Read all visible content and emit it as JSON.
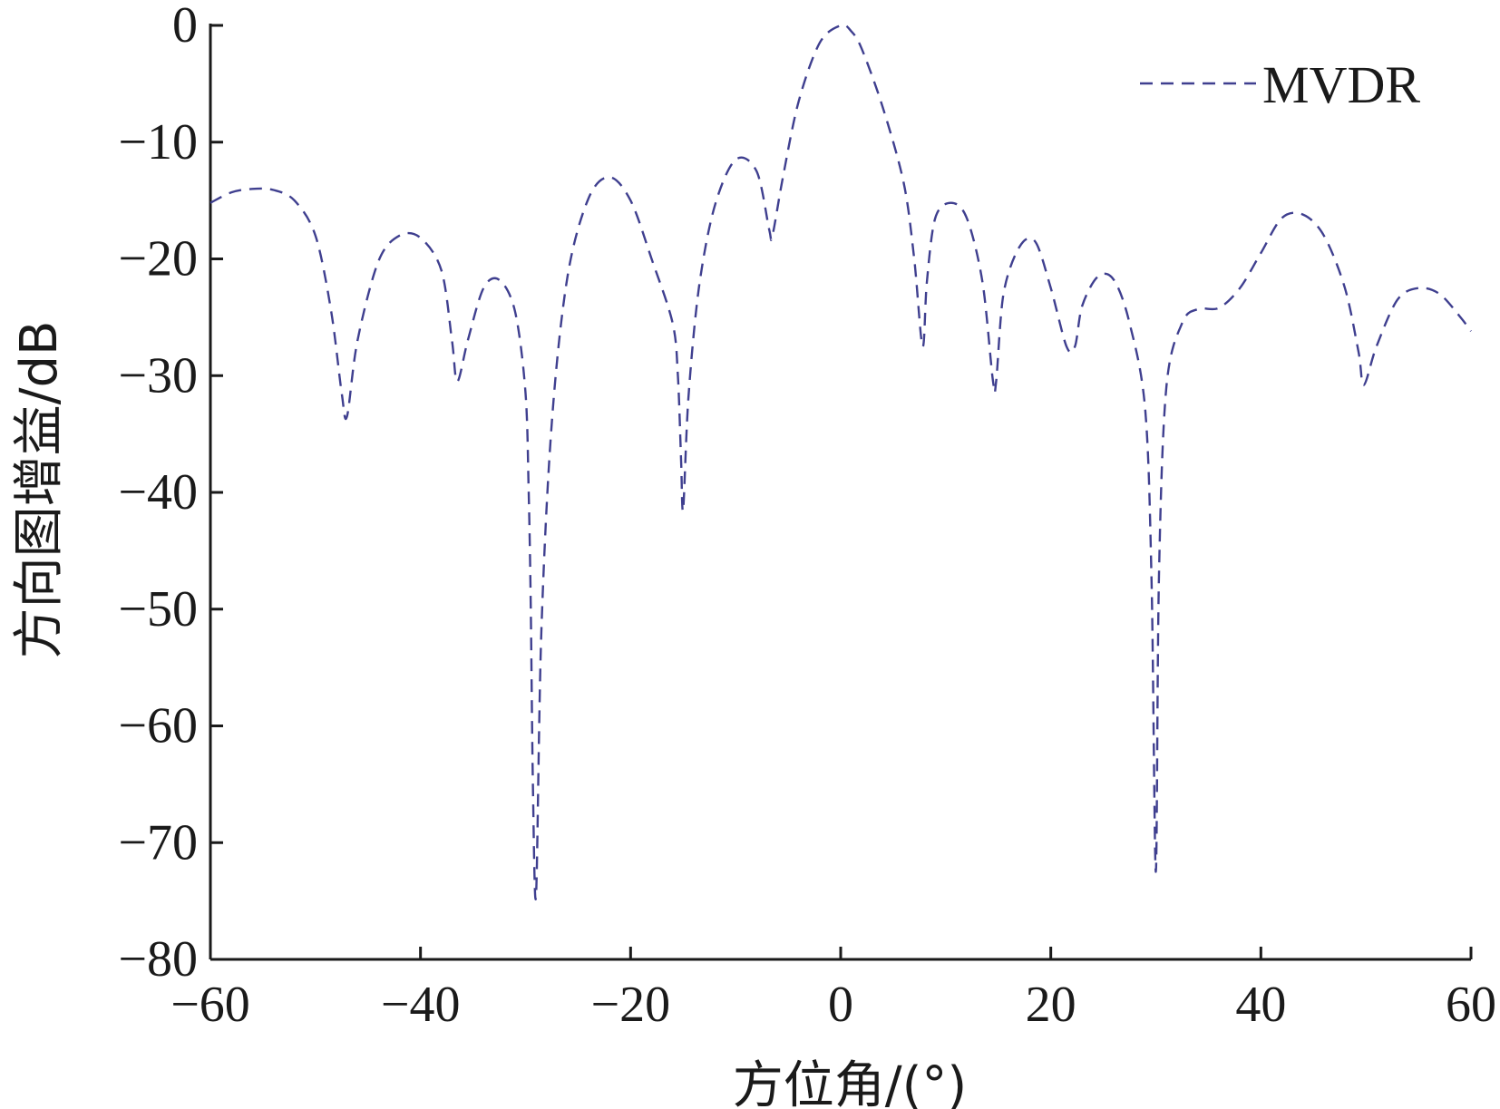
{
  "chart_data": {
    "type": "line",
    "xlabel": "方位角/(°)",
    "ylabel": "方向图增益/dB",
    "xlim": [
      -60,
      60
    ],
    "ylim": [
      -80,
      0
    ],
    "xticks": [
      "−60",
      "−40",
      "−20",
      "0",
      "20",
      "40",
      "60"
    ],
    "xtick_values": [
      -60,
      -40,
      -20,
      0,
      20,
      40,
      60
    ],
    "yticks": [
      "0",
      "−10",
      "−20",
      "−30",
      "−40",
      "−50",
      "−60",
      "−70",
      "−80"
    ],
    "ytick_values": [
      0,
      -10,
      -20,
      -30,
      -40,
      -50,
      -60,
      -70,
      -80
    ],
    "grid": false,
    "legend_position": "top-right",
    "series": [
      {
        "name": "MVDR",
        "color": "#3f3f8f",
        "line_style": "dashed",
        "x": [
          -60,
          -58,
          -56,
          -54,
          -52,
          -50,
          -48.5,
          -47.5,
          -47,
          -46,
          -44,
          -42,
          -40,
          -38,
          -37,
          -36.5,
          -35.5,
          -34,
          -32.5,
          -31,
          -30,
          -29.7,
          -29.5,
          -29.3,
          -29,
          -28.5,
          -27.5,
          -26,
          -24,
          -22,
          -20,
          -18,
          -16,
          -15.5,
          -15.2,
          -15,
          -14.5,
          -13.5,
          -12,
          -10,
          -8,
          -6.8,
          -6.5,
          -5.5,
          -4,
          -2,
          0,
          1,
          2,
          4,
          6,
          7,
          7.8,
          8.2,
          9,
          10.5,
          12,
          13.5,
          14.5,
          14.8,
          15.5,
          17,
          18.5,
          20,
          21.5,
          22.3,
          23,
          24.5,
          26,
          27.5,
          29,
          29.6,
          30,
          30.3,
          31,
          32.5,
          34,
          36,
          38,
          40,
          42,
          44,
          46,
          48,
          49.3,
          49.8,
          51,
          53,
          55,
          57,
          59,
          60
        ],
        "values": [
          -15.2,
          -14.3,
          -14.0,
          -14.1,
          -15.0,
          -18.0,
          -24.5,
          -31.5,
          -33.5,
          -27.0,
          -20.2,
          -18.0,
          -18.2,
          -21.0,
          -27.0,
          -30.5,
          -27.0,
          -22.5,
          -21.8,
          -24.5,
          -31.5,
          -40,
          -50,
          -65,
          -74.5,
          -52,
          -34,
          -21.5,
          -14.8,
          -13.0,
          -15.0,
          -20.0,
          -25.5,
          -30.0,
          -37.0,
          -41.5,
          -32.0,
          -22.5,
          -15.5,
          -11.5,
          -12.5,
          -17.5,
          -18.0,
          -13.0,
          -6.5,
          -1.5,
          0.0,
          -0.5,
          -2.0,
          -7.0,
          -13.5,
          -20.0,
          -27.5,
          -22.0,
          -16.5,
          -15.2,
          -16.5,
          -22.0,
          -30.5,
          -30.5,
          -23.0,
          -19.0,
          -18.5,
          -22.5,
          -27.5,
          -27.5,
          -24.0,
          -21.5,
          -21.8,
          -25.5,
          -33.0,
          -48,
          -72.5,
          -47,
          -31.0,
          -25.5,
          -24.3,
          -24.2,
          -22.5,
          -19.5,
          -16.5,
          -16.2,
          -18.0,
          -22.5,
          -28.0,
          -30.8,
          -27.5,
          -23.5,
          -22.5,
          -23.0,
          -25.0,
          -26.2
        ]
      }
    ]
  }
}
